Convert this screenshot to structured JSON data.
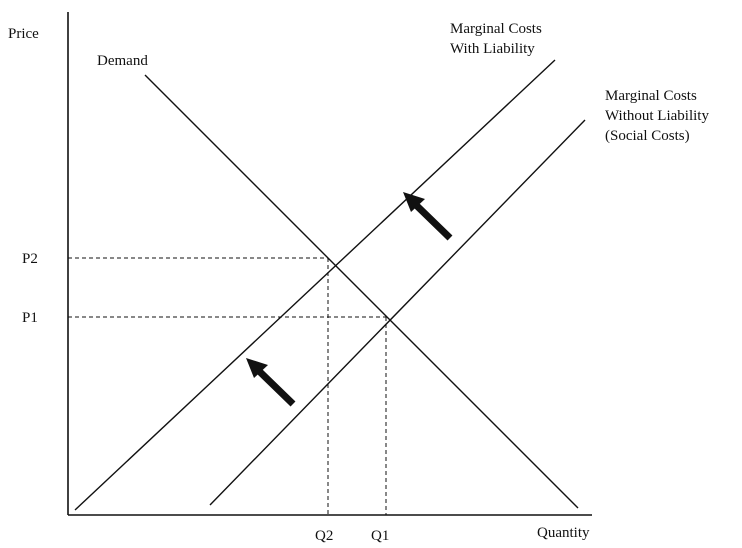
{
  "axes": {
    "y_label": "Price",
    "x_label": "Quantity"
  },
  "curves": {
    "demand": "Demand",
    "mc_with_liability": [
      "Marginal Costs",
      "With Liability"
    ],
    "mc_without_liability": [
      "Marginal Costs",
      "Without Liability",
      "(Social Costs)"
    ]
  },
  "prices": [
    "P2",
    "P1"
  ],
  "quantities": [
    "Q2",
    "Q1"
  ]
}
